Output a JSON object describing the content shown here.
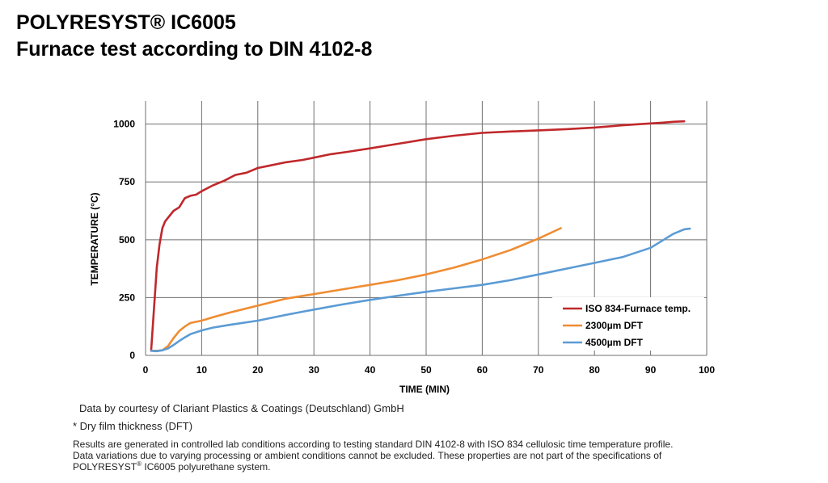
{
  "header": {
    "title_line1": "POLYRESYST® IC6005",
    "title_line2": "Furnace test according to DIN 4102-8"
  },
  "chart_data": {
    "type": "line",
    "xlabel": "TIME (MIN)",
    "ylabel": "TEMPERATURE (°C)",
    "xlim": [
      0,
      100
    ],
    "ylim": [
      0,
      1100
    ],
    "xticks": [
      0,
      10,
      20,
      30,
      40,
      50,
      60,
      70,
      80,
      90,
      100
    ],
    "yticks": [
      0,
      250,
      500,
      750,
      1000
    ],
    "grid": true,
    "legend_position": "bottom-right",
    "series": [
      {
        "name": "ISO 834-Furnace temp.",
        "color": "#c0282b",
        "x": [
          1,
          1.5,
          2,
          2.5,
          3,
          3.5,
          4,
          5,
          6,
          7,
          8,
          9,
          10,
          12,
          14,
          16,
          18,
          20,
          22,
          25,
          28,
          30,
          33,
          36,
          40,
          45,
          50,
          55,
          60,
          65,
          70,
          75,
          80,
          85,
          90,
          92,
          94,
          96
        ],
        "y": [
          20,
          200,
          380,
          480,
          550,
          580,
          595,
          625,
          640,
          680,
          690,
          695,
          710,
          735,
          755,
          780,
          790,
          810,
          820,
          835,
          845,
          855,
          870,
          880,
          895,
          915,
          935,
          950,
          962,
          968,
          973,
          978,
          985,
          995,
          1003,
          1006,
          1010,
          1012
        ]
      },
      {
        "name": "2300µm DFT",
        "color": "#ef8c32",
        "x": [
          1,
          2,
          3,
          4,
          5,
          6,
          7,
          8,
          10,
          12,
          15,
          20,
          25,
          30,
          35,
          40,
          45,
          50,
          55,
          60,
          65,
          70,
          74
        ],
        "y": [
          20,
          20,
          22,
          40,
          75,
          105,
          125,
          140,
          150,
          165,
          185,
          215,
          245,
          265,
          285,
          305,
          325,
          350,
          380,
          415,
          455,
          505,
          550
        ]
      },
      {
        "name": "4500µm DFT",
        "color": "#5b9bd5",
        "x": [
          1,
          2,
          3,
          4,
          5,
          6,
          7,
          8,
          10,
          12,
          15,
          20,
          25,
          30,
          35,
          40,
          45,
          50,
          55,
          60,
          65,
          70,
          75,
          80,
          85,
          90,
          92,
          94,
          96,
          97
        ],
        "y": [
          20,
          18,
          22,
          30,
          45,
          62,
          78,
          92,
          108,
          120,
          132,
          150,
          175,
          198,
          220,
          240,
          258,
          275,
          290,
          305,
          325,
          350,
          375,
          400,
          425,
          465,
          495,
          525,
          545,
          548
        ]
      }
    ]
  },
  "notes": {
    "courtesy": "Data by courtesy of Clariant Plastics & Coatings (Deutschland) GmbH",
    "dft": "* Dry film thickness (DFT)",
    "disclaimer_line1": "Results are generated in controlled lab conditions according to testing standard DIN 4102-8 with ISO 834 cellulosic time temperature profile.",
    "disclaimer_line2": "Data variations due to varying processing or ambient conditions cannot be excluded. These properties are not part of the specifications of",
    "disclaimer_line3a": "POLYRESYST",
    "disclaimer_line3_sup": "®",
    "disclaimer_line3b": " IC6005 polyurethane system."
  }
}
